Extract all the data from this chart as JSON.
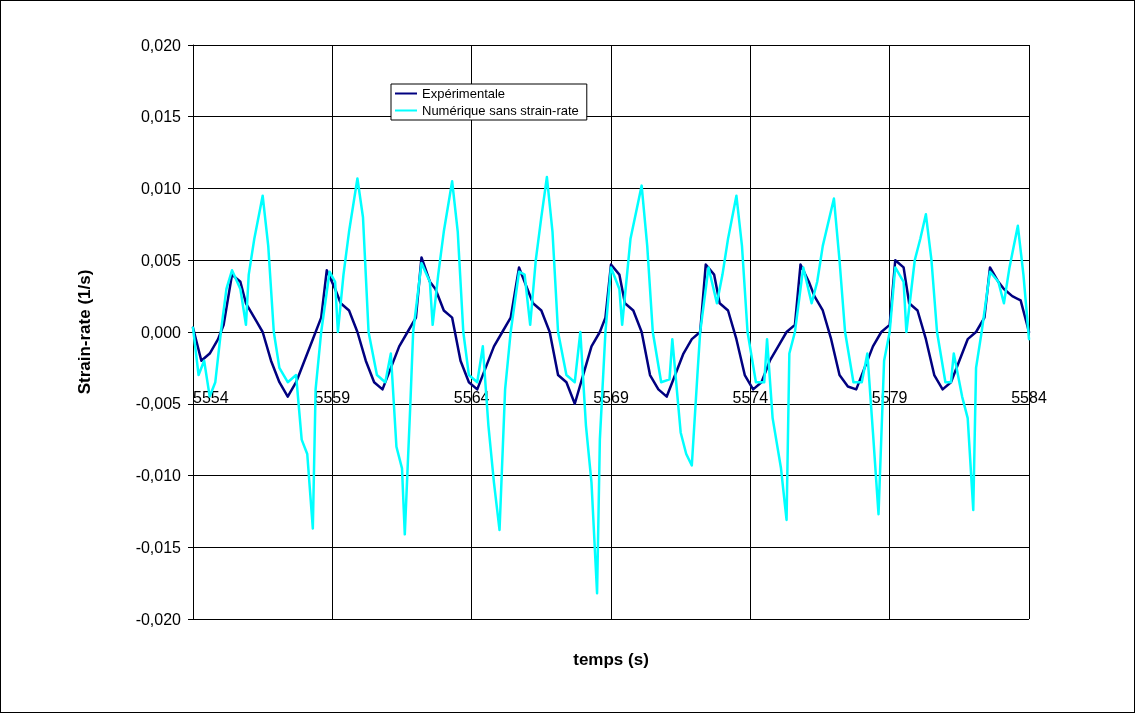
{
  "chart_data": {
    "type": "line",
    "xlabel": "temps (s)",
    "ylabel": "Strain-rate (1/s)",
    "xlim": [
      5554,
      5584
    ],
    "xticks": [
      5554,
      5559,
      5564,
      5569,
      5574,
      5579,
      5584
    ],
    "ylim": [
      -0.02,
      0.02
    ],
    "yticks": [
      {
        "value": -0.02,
        "label": "-0,020"
      },
      {
        "value": -0.015,
        "label": "-0,015"
      },
      {
        "value": -0.01,
        "label": "-0,010"
      },
      {
        "value": -0.005,
        "label": "-0,005"
      },
      {
        "value": 0,
        "label": "0,000"
      },
      {
        "value": 0.005,
        "label": "0,005"
      },
      {
        "value": 0.01,
        "label": "0,010"
      },
      {
        "value": 0.015,
        "label": "0,015"
      },
      {
        "value": 0.02,
        "label": "0,020"
      }
    ],
    "grid": true,
    "legend": "top",
    "marker": "none",
    "line_style": "solid",
    "series": [
      {
        "name": "Expérimentale",
        "color": "#000080",
        "x": [
          5554.0,
          5554.3,
          5554.6,
          5554.9,
          5555.1,
          5555.4,
          5555.7,
          5555.9,
          5556.2,
          5556.5,
          5556.8,
          5557.1,
          5557.4,
          5557.7,
          5558.0,
          5558.3,
          5558.6,
          5558.8,
          5559.1,
          5559.3,
          5559.6,
          5559.9,
          5560.2,
          5560.5,
          5560.8,
          5561.1,
          5561.4,
          5561.7,
          5562.0,
          5562.2,
          5562.5,
          5562.7,
          5563.0,
          5563.3,
          5563.6,
          5563.9,
          5564.2,
          5564.5,
          5564.8,
          5565.1,
          5565.4,
          5565.7,
          5566.0,
          5566.2,
          5566.5,
          5566.8,
          5567.1,
          5567.4,
          5567.7,
          5568.0,
          5568.3,
          5568.6,
          5568.8,
          5569.0,
          5569.3,
          5569.5,
          5569.8,
          5570.1,
          5570.4,
          5570.7,
          5571.0,
          5571.3,
          5571.6,
          5571.9,
          5572.2,
          5572.4,
          5572.7,
          5572.9,
          5573.2,
          5573.5,
          5573.8,
          5574.1,
          5574.4,
          5574.7,
          5575.0,
          5575.3,
          5575.6,
          5575.8,
          5576.1,
          5576.3,
          5576.6,
          5576.9,
          5577.2,
          5577.5,
          5577.8,
          5578.1,
          5578.4,
          5578.7,
          5579.0,
          5579.2,
          5579.5,
          5579.7,
          5580.0,
          5580.3,
          5580.6,
          5580.9,
          5581.2,
          5581.5,
          5581.8,
          5582.1,
          5582.4,
          5582.6,
          5582.9,
          5583.1,
          5583.4,
          5583.7,
          5584.0
        ],
        "values": [
          0.0003,
          -0.002,
          -0.0015,
          -0.0005,
          0.0005,
          0.004,
          0.0035,
          0.002,
          0.001,
          0.0,
          -0.002,
          -0.0035,
          -0.0045,
          -0.0035,
          -0.002,
          -0.0005,
          0.001,
          0.0043,
          0.003,
          0.002,
          0.0015,
          0.0,
          -0.002,
          -0.0035,
          -0.004,
          -0.0025,
          -0.001,
          0.0,
          0.001,
          0.0052,
          0.0035,
          0.003,
          0.0015,
          0.001,
          -0.002,
          -0.0035,
          -0.004,
          -0.0025,
          -0.001,
          0.0,
          0.001,
          0.0045,
          0.003,
          0.002,
          0.0015,
          0.0,
          -0.003,
          -0.0035,
          -0.005,
          -0.003,
          -0.001,
          0.0,
          0.001,
          0.0047,
          0.004,
          0.002,
          0.0015,
          0.0,
          -0.003,
          -0.004,
          -0.0045,
          -0.003,
          -0.0015,
          -0.0005,
          0.0,
          0.0047,
          0.004,
          0.002,
          0.0015,
          -0.0005,
          -0.003,
          -0.004,
          -0.0035,
          -0.002,
          -0.001,
          0.0,
          0.0005,
          0.0047,
          0.0035,
          0.0025,
          0.0015,
          -0.0005,
          -0.003,
          -0.0038,
          -0.004,
          -0.0025,
          -0.001,
          0.0,
          0.0005,
          0.005,
          0.0045,
          0.002,
          0.0015,
          -0.0005,
          -0.003,
          -0.004,
          -0.0035,
          -0.002,
          -0.0005,
          0.0,
          0.001,
          0.0045,
          0.0035,
          0.003,
          0.0025,
          0.0022,
          0.0
        ]
      },
      {
        "name": "Numérique sans strain-rate",
        "color": "#00ffff",
        "x": [
          5554.0,
          5554.2,
          5554.4,
          5554.6,
          5554.8,
          5555.0,
          5555.2,
          5555.4,
          5555.7,
          5555.9,
          5556.0,
          5556.2,
          5556.5,
          5556.7,
          5556.9,
          5557.1,
          5557.4,
          5557.7,
          5557.9,
          5558.1,
          5558.3,
          5558.4,
          5558.6,
          5558.9,
          5559.1,
          5559.2,
          5559.4,
          5559.6,
          5559.9,
          5560.1,
          5560.3,
          5560.6,
          5560.9,
          5561.1,
          5561.3,
          5561.5,
          5561.6,
          5561.8,
          5561.9,
          5562.2,
          5562.5,
          5562.6,
          5562.8,
          5563.0,
          5563.3,
          5563.5,
          5563.7,
          5563.9,
          5564.2,
          5564.4,
          5564.6,
          5564.8,
          5565.0,
          5565.2,
          5565.4,
          5565.7,
          5565.9,
          5566.1,
          5566.3,
          5566.5,
          5566.7,
          5566.9,
          5567.1,
          5567.4,
          5567.7,
          5567.9,
          5568.1,
          5568.3,
          5568.5,
          5568.6,
          5568.8,
          5569.0,
          5569.3,
          5569.4,
          5569.7,
          5570.1,
          5570.3,
          5570.5,
          5570.8,
          5571.1,
          5571.2,
          5571.5,
          5571.7,
          5571.9,
          5572.1,
          5572.2,
          5572.5,
          5572.8,
          5573.0,
          5573.2,
          5573.5,
          5573.7,
          5573.9,
          5574.2,
          5574.5,
          5574.6,
          5574.8,
          5575.1,
          5575.3,
          5575.4,
          5575.6,
          5575.9,
          5576.2,
          5576.4,
          5576.6,
          5577.0,
          5577.2,
          5577.4,
          5577.7,
          5578.0,
          5578.2,
          5578.4,
          5578.6,
          5578.8,
          5579.0,
          5579.2,
          5579.5,
          5579.6,
          5579.9,
          5580.1,
          5580.3,
          5580.5,
          5580.7,
          5581.0,
          5581.2,
          5581.3,
          5581.6,
          5581.8,
          5582.0,
          5582.1,
          5582.3,
          5582.6,
          5582.9,
          5583.1,
          5583.3,
          5583.6,
          5583.8,
          5584.0
        ],
        "values": [
          0.0003,
          -0.003,
          -0.002,
          -0.0045,
          -0.0035,
          0.0,
          0.003,
          0.0043,
          0.003,
          0.0005,
          0.004,
          0.0065,
          0.0095,
          0.006,
          0.0,
          -0.0025,
          -0.0035,
          -0.003,
          -0.0075,
          -0.0085,
          -0.0137,
          -0.004,
          0.0,
          0.0042,
          0.0035,
          0.0,
          0.004,
          0.007,
          0.0107,
          0.008,
          0.0,
          -0.003,
          -0.0035,
          -0.0015,
          -0.008,
          -0.0095,
          -0.0141,
          -0.005,
          0.0,
          0.0048,
          0.0035,
          0.0005,
          0.004,
          0.007,
          0.0105,
          0.007,
          0.0,
          -0.003,
          -0.0035,
          -0.001,
          -0.0065,
          -0.0105,
          -0.0138,
          -0.004,
          0.0,
          0.0042,
          0.004,
          0.0005,
          0.005,
          0.008,
          0.0108,
          0.007,
          0.0,
          -0.003,
          -0.0035,
          0.0,
          -0.0065,
          -0.0105,
          -0.0182,
          -0.0075,
          0.0,
          0.0045,
          0.003,
          0.0005,
          0.0065,
          0.0102,
          0.006,
          0.0,
          -0.0035,
          -0.0033,
          -0.0005,
          -0.007,
          -0.0085,
          -0.0093,
          -0.003,
          0.0,
          0.0045,
          0.002,
          0.004,
          0.0065,
          0.0095,
          0.006,
          0.0,
          -0.0035,
          -0.0035,
          -0.0005,
          -0.006,
          -0.0095,
          -0.0131,
          -0.0015,
          0.0,
          0.0045,
          0.002,
          0.0035,
          0.006,
          0.0093,
          0.005,
          0.0,
          -0.0035,
          -0.0035,
          -0.0015,
          -0.007,
          -0.0127,
          -0.002,
          0.0,
          0.0045,
          0.0035,
          0.0,
          0.005,
          0.0065,
          0.0082,
          0.005,
          0.0,
          -0.0035,
          -0.0035,
          -0.0015,
          -0.0045,
          -0.006,
          -0.0124,
          -0.0025,
          0.0,
          0.0042,
          0.0035,
          0.002,
          0.0045,
          0.0074,
          0.004,
          -0.0005
        ]
      }
    ]
  }
}
